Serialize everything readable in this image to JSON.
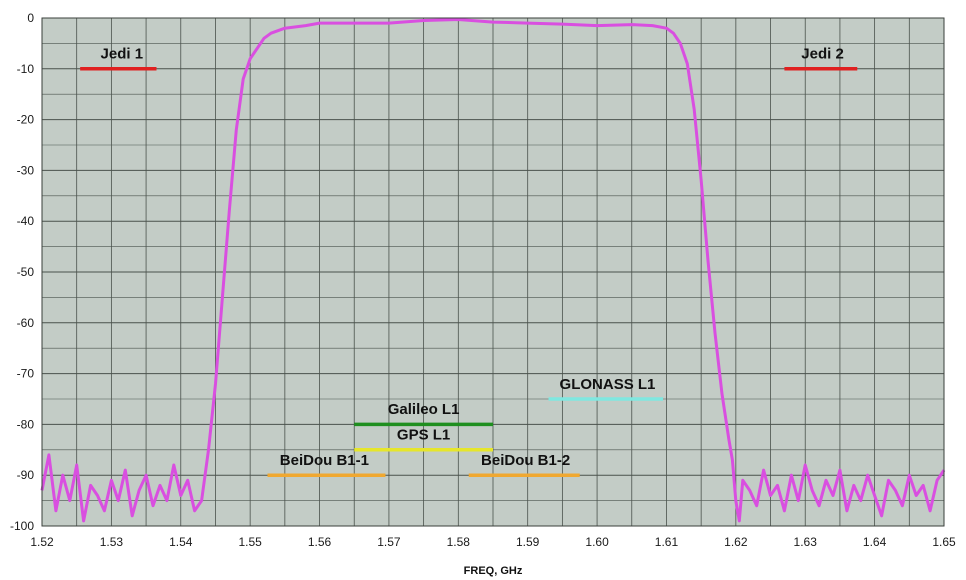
{
  "chart_data": {
    "type": "line",
    "xlabel": "FREQ, GHz",
    "ylabel": "",
    "title": "",
    "xlim": [
      1.52,
      1.65
    ],
    "ylim": [
      -100,
      0
    ],
    "x_ticks": [
      "1.52",
      "1.53",
      "1.54",
      "1.55",
      "1.56",
      "1.57",
      "1.58",
      "1.59",
      "1.60",
      "1.61",
      "1.62",
      "1.63",
      "1.64",
      "1.65"
    ],
    "y_ticks": [
      "0",
      "-10",
      "-20",
      "-30",
      "-40",
      "-50",
      "-60",
      "-70",
      "-80",
      "-90",
      "-100"
    ],
    "grid": true,
    "minor_grid_x_step": 0.005,
    "major_grid_y_step": 10,
    "minor_grid_y_step": 5,
    "plot_background": "#c3ccc6",
    "grid_color": "#4a524c",
    "series": [
      {
        "color": "#d94fe0",
        "x": [
          1.52,
          1.521,
          1.522,
          1.523,
          1.524,
          1.525,
          1.526,
          1.527,
          1.528,
          1.529,
          1.53,
          1.531,
          1.532,
          1.533,
          1.534,
          1.535,
          1.536,
          1.537,
          1.538,
          1.539,
          1.54,
          1.541,
          1.542,
          1.543,
          1.544,
          1.545,
          1.546,
          1.547,
          1.548,
          1.549,
          1.55,
          1.551,
          1.552,
          1.553,
          1.555,
          1.558,
          1.56,
          1.565,
          1.57,
          1.575,
          1.58,
          1.585,
          1.59,
          1.595,
          1.6,
          1.605,
          1.608,
          1.61,
          1.611,
          1.612,
          1.613,
          1.614,
          1.615,
          1.616,
          1.617,
          1.618,
          1.619,
          1.6195,
          1.62,
          1.6205,
          1.621,
          1.622,
          1.623,
          1.624,
          1.625,
          1.626,
          1.627,
          1.628,
          1.629,
          1.63,
          1.631,
          1.632,
          1.633,
          1.634,
          1.635,
          1.636,
          1.637,
          1.638,
          1.639,
          1.64,
          1.641,
          1.642,
          1.643,
          1.644,
          1.645,
          1.646,
          1.647,
          1.648,
          1.649,
          1.65
        ],
        "y": [
          -93,
          -86,
          -97,
          -90,
          -95,
          -88,
          -99,
          -92,
          -94,
          -97,
          -91,
          -95,
          -89,
          -98,
          -93,
          -90,
          -96,
          -92,
          -95,
          -88,
          -94,
          -91,
          -97,
          -95,
          -85,
          -72,
          -55,
          -38,
          -22,
          -12,
          -8,
          -6,
          -4,
          -3,
          -2,
          -1.5,
          -1,
          -1,
          -1,
          -0.5,
          -0.3,
          -0.8,
          -1,
          -1.2,
          -1.5,
          -1.3,
          -1.5,
          -2,
          -3,
          -5,
          -9,
          -18,
          -32,
          -48,
          -62,
          -74,
          -83,
          -87,
          -95,
          -99,
          -91,
          -93,
          -96,
          -89,
          -94,
          -92,
          -97,
          -90,
          -95,
          -88,
          -93,
          -96,
          -91,
          -94,
          -89,
          -97,
          -92,
          -95,
          -90,
          -94,
          -98,
          -91,
          -93,
          -96,
          -90,
          -94,
          -92,
          -97,
          -91,
          -89
        ]
      }
    ],
    "bands": [
      {
        "name": "Jedi 1",
        "x0": 1.5255,
        "x1": 1.5365,
        "y": -10,
        "label_x": 1.5315,
        "label_y": -8,
        "color": "#e02020"
      },
      {
        "name": "Jedi 2",
        "x0": 1.627,
        "x1": 1.6375,
        "y": -10,
        "label_x": 1.6325,
        "label_y": -8,
        "color": "#e02020"
      },
      {
        "name": "GLONASS L1",
        "x0": 1.593,
        "x1": 1.6095,
        "y": -75,
        "label_x": 1.6015,
        "label_y": -73,
        "color": "#7fe8e0"
      },
      {
        "name": "Galileo L1",
        "x0": 1.565,
        "x1": 1.585,
        "y": -80,
        "label_x": 1.575,
        "label_y": -78,
        "color": "#1f8f1f"
      },
      {
        "name": "GPS L1",
        "x0": 1.565,
        "x1": 1.585,
        "y": -85,
        "label_x": 1.575,
        "label_y": -83,
        "color": "#e6e62a"
      },
      {
        "name": "BeiDou B1-1",
        "x0": 1.5525,
        "x1": 1.5695,
        "y": -90,
        "label_x": 1.5607,
        "label_y": -88,
        "color": "#f0a830"
      },
      {
        "name": "BeiDou B1-2",
        "x0": 1.5815,
        "x1": 1.5975,
        "y": -90,
        "label_x": 1.5897,
        "label_y": -88,
        "color": "#f0a830"
      }
    ]
  }
}
